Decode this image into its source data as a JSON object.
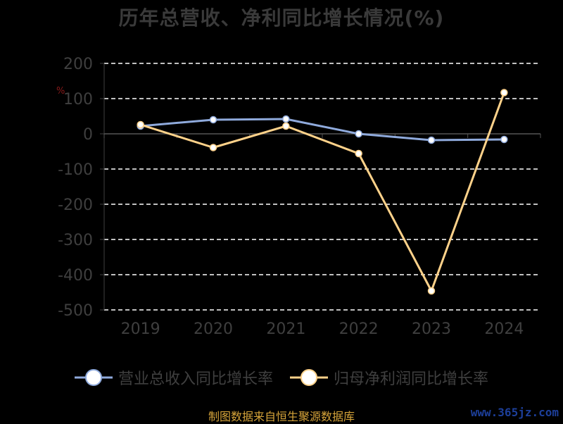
{
  "chart_data": {
    "type": "line",
    "title": "历年总营收、净利同比增长情况(%)",
    "unit_label": "%",
    "categories": [
      "2019",
      "2020",
      "2021",
      "2022",
      "2023",
      "2024"
    ],
    "ylim": [
      -500,
      200
    ],
    "yticks": [
      200,
      100,
      0,
      -100,
      -200,
      -300,
      -400,
      -500
    ],
    "grid": true,
    "legend_position": "bottom",
    "series": [
      {
        "name": "营业总收入同比增长率",
        "color": "#8faadc",
        "values": [
          22,
          40,
          42,
          0,
          -18,
          -16
        ]
      },
      {
        "name": "归母净利润同比增长率",
        "color": "#ffd28a",
        "values": [
          26,
          -39,
          22,
          -56,
          -446,
          117
        ]
      }
    ]
  },
  "footer": {
    "source": "制图数据来自恒生聚源数据库"
  },
  "watermark": {
    "text": "www.365jz.com"
  }
}
